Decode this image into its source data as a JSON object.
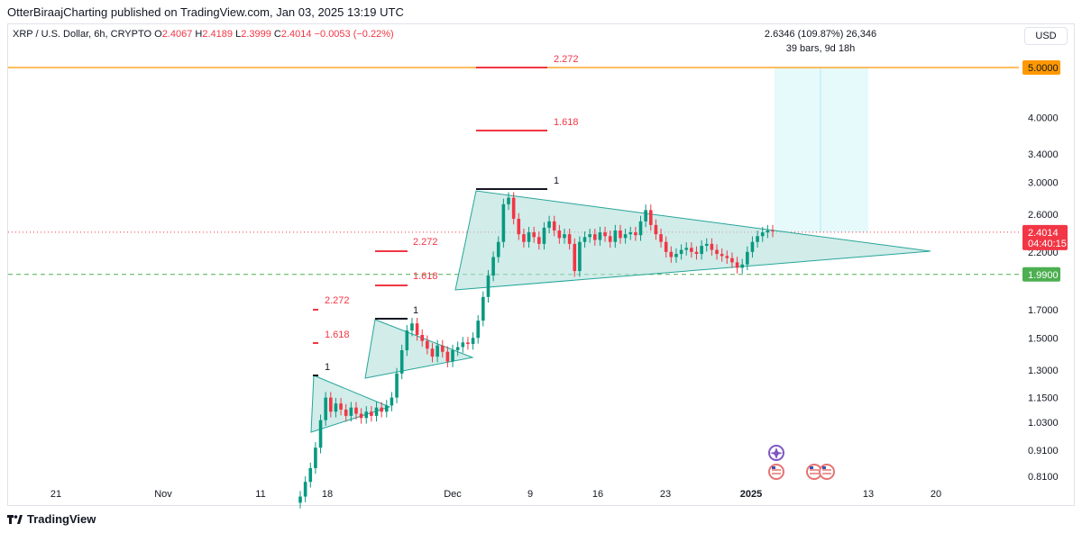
{
  "header": {
    "publisher": "OtterBiraajCharting published on TradingView.com, Jan 03, 2025 13:19 UTC"
  },
  "legend": {
    "symbol": "XRP / U.S. Dollar, 6h, CRYPTO",
    "open_label": "O",
    "open": "2.4067",
    "high_label": "H",
    "high": "2.4189",
    "low_label": "L",
    "low": "2.3999",
    "close_label": "C",
    "close": "2.4014",
    "change": "−0.0053 (−0.22%)"
  },
  "currency_button": "USD",
  "measure": {
    "line1": "2.6346 (109.87%) 26,346",
    "line2": "39 bars, 9d 18h"
  },
  "footer": {
    "brand": "TradingView"
  },
  "colors": {
    "up": "#089981",
    "down": "#f23645",
    "triangle_fill": "#b2dfdb",
    "triangle_stroke": "#26a69a",
    "target": "#ff9800",
    "support": "#4caf50",
    "fib": "#f23645",
    "measure_bg": "#e0f7fa"
  },
  "chart_data": {
    "type": "candlestick",
    "scale": "log",
    "y_ticks": [
      "5.0000",
      "4.0000",
      "3.4000",
      "3.0000",
      "2.6000",
      "2.2000",
      "1.9900",
      "1.7000",
      "1.5000",
      "1.3000",
      "1.1500",
      "1.0300",
      "0.9100",
      "0.8100"
    ],
    "x_ticks": [
      "21",
      "Nov",
      "11",
      "18",
      "Dec",
      "9",
      "16",
      "23",
      "2025",
      "13",
      "20"
    ],
    "price_labels": [
      {
        "value": "5.0000",
        "kind": "target"
      },
      {
        "value": "2.4014",
        "kind": "last",
        "timer": "04:40:15"
      },
      {
        "value": "1.9900",
        "kind": "support"
      }
    ],
    "fib_labels": [
      {
        "text": "2.272",
        "group": "big"
      },
      {
        "text": "1.618",
        "group": "big"
      },
      {
        "text": "1",
        "group": "big"
      },
      {
        "text": "2.272",
        "group": "mid"
      },
      {
        "text": "1.618",
        "group": "mid"
      },
      {
        "text": "1",
        "group": "mid"
      },
      {
        "text": "2.272",
        "group": "small"
      },
      {
        "text": "1.618",
        "group": "small"
      },
      {
        "text": "1",
        "group": "small"
      }
    ],
    "grid": false,
    "series": [
      {
        "name": "XRP / U.S. Dollar",
        "close": [
          0.74,
          0.79,
          0.84,
          0.92,
          1.04,
          1.15,
          1.08,
          1.12,
          1.09,
          1.06,
          1.1,
          1.07,
          1.05,
          1.08,
          1.06,
          1.1,
          1.08,
          1.11,
          1.15,
          1.28,
          1.42,
          1.55,
          1.6,
          1.52,
          1.48,
          1.43,
          1.38,
          1.45,
          1.41,
          1.35,
          1.42,
          1.44,
          1.47,
          1.46,
          1.5,
          1.62,
          1.8,
          1.98,
          2.15,
          2.3,
          2.72,
          2.8,
          2.55,
          2.38,
          2.3,
          2.4,
          2.35,
          2.28,
          2.45,
          2.52,
          2.42,
          2.34,
          2.38,
          2.28,
          2.02,
          2.3,
          2.35,
          2.38,
          2.32,
          2.4,
          2.36,
          2.3,
          2.42,
          2.34,
          2.38,
          2.4,
          2.37,
          2.52,
          2.65,
          2.48,
          2.38,
          2.3,
          2.2,
          2.15,
          2.18,
          2.22,
          2.24,
          2.2,
          2.18,
          2.26,
          2.28,
          2.22,
          2.18,
          2.16,
          2.14,
          2.1,
          2.05,
          2.08,
          2.2,
          2.3,
          2.36,
          2.4,
          2.42,
          2.41
        ]
      }
    ]
  }
}
